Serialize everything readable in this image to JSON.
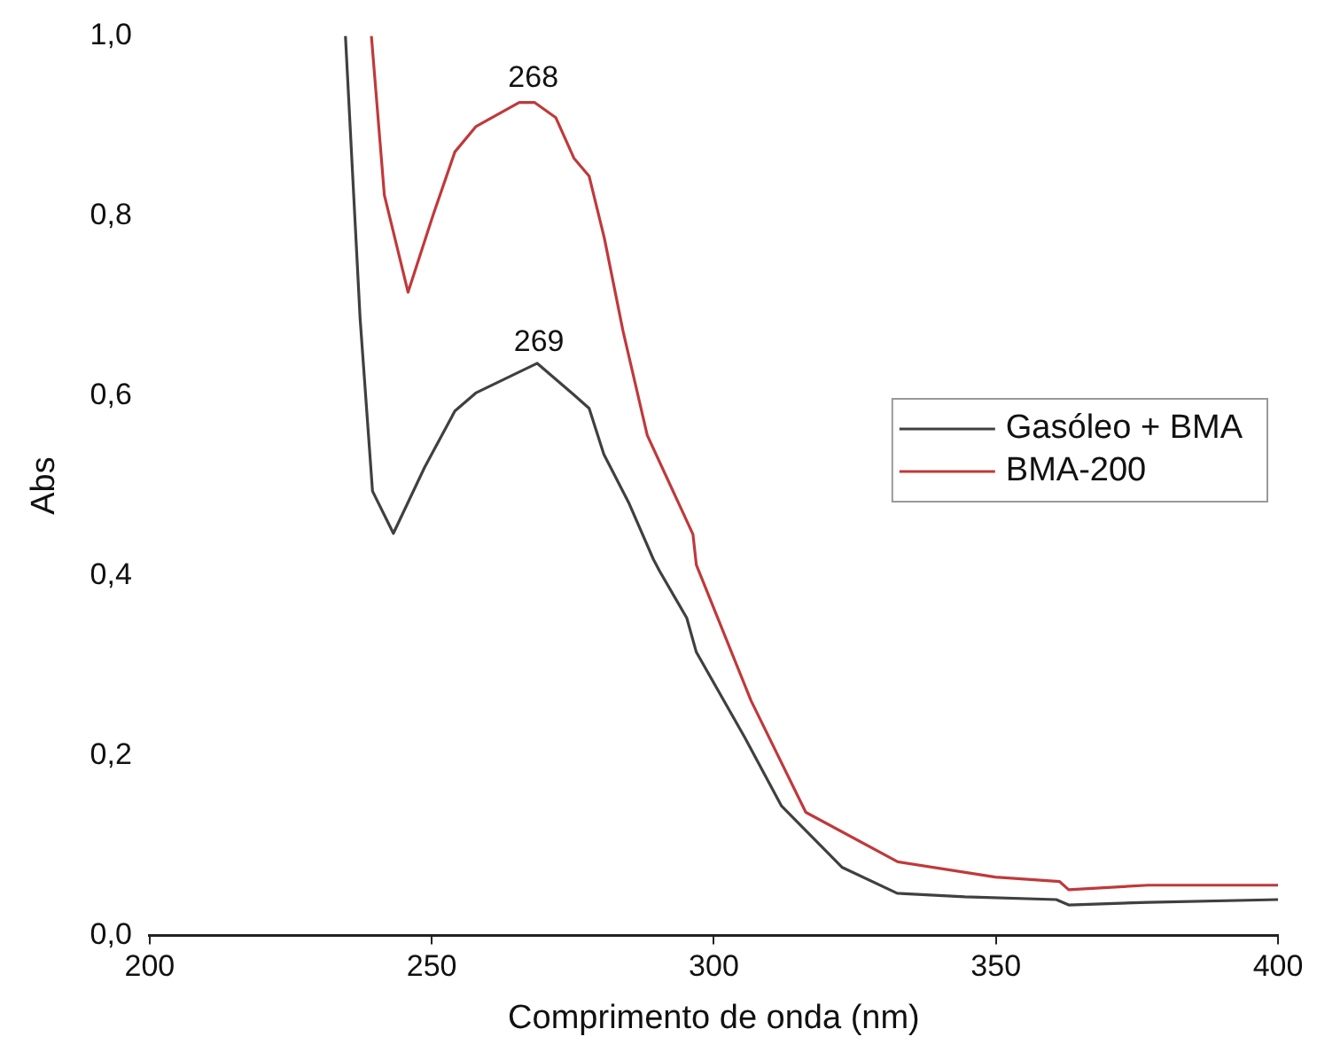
{
  "chart_data": {
    "type": "line",
    "xlabel": "Comprimento de onda (nm)",
    "ylabel": "Abs",
    "xlim": [
      200,
      400
    ],
    "xticks": [
      200,
      250,
      300,
      350,
      400
    ],
    "ylim": [
      0,
      1
    ],
    "yticks": [
      {
        "value": 0,
        "label": "0,0"
      },
      {
        "value": 0.2,
        "label": "0,2"
      },
      {
        "value": 0.4,
        "label": "0,4"
      },
      {
        "value": 0.6,
        "label": "0,6"
      },
      {
        "value": 0.8,
        "label": "0,8"
      },
      {
        "value": 1,
        "label": "1,0"
      }
    ],
    "grid": false,
    "legend": "right",
    "marker": "none",
    "line_style": "solid",
    "annotations": [
      {
        "text": "268",
        "x": 268,
        "y": 0.93
      },
      {
        "text": "269",
        "x": 269,
        "y": 0.636
      }
    ],
    "series": [
      {
        "name": "Gasóleo + BMA",
        "color": "#404040",
        "x": [
          234.7,
          237.3,
          239.5,
          243.2,
          248.7,
          254.1,
          257.8,
          268.7,
          275.2,
          277.9,
          280.5,
          285,
          289.3,
          290.4,
          295.2,
          296.9,
          305.5,
          312,
          322.7,
          332.5,
          344.5,
          360.7,
          362.9,
          377,
          400
        ],
        "values": [
          1.0,
          0.686,
          0.494,
          0.447,
          0.52,
          0.583,
          0.603,
          0.636,
          0.601,
          0.586,
          0.535,
          0.48,
          0.418,
          0.405,
          0.353,
          0.315,
          0.22,
          0.144,
          0.076,
          0.047,
          0.043,
          0.04,
          0.034,
          0.037,
          0.04
        ]
      },
      {
        "name": "BMA-200",
        "color": "#c0393b",
        "x": [
          239.3,
          241.6,
          245.8,
          250.3,
          254.1,
          257.8,
          265.5,
          268.2,
          272,
          275.2,
          277.9,
          280.6,
          283.9,
          288.2,
          296.3,
          296.9,
          306.6,
          316.3,
          332.6,
          349.9,
          361.3,
          362.9,
          377,
          400
        ],
        "values": [
          1.0,
          0.823,
          0.715,
          0.802,
          0.871,
          0.899,
          0.926,
          0.926,
          0.909,
          0.864,
          0.844,
          0.775,
          0.672,
          0.556,
          0.446,
          0.412,
          0.261,
          0.137,
          0.082,
          0.065,
          0.06,
          0.051,
          0.056,
          0.056
        ]
      }
    ]
  }
}
